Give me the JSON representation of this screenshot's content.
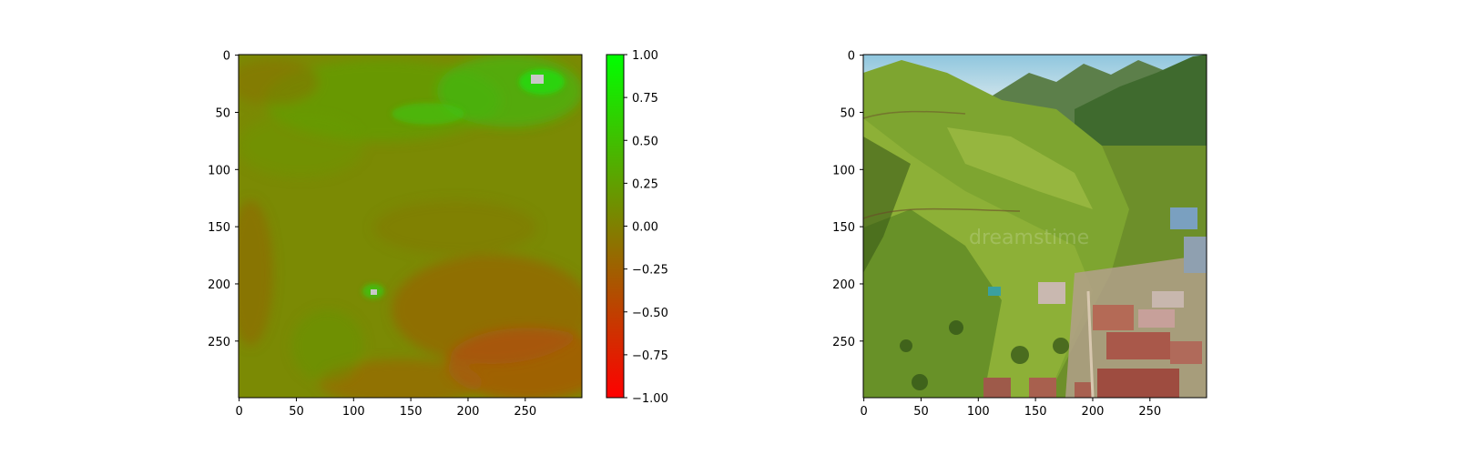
{
  "chart_data": [
    {
      "type": "heatmap",
      "title": "",
      "xlabel": "",
      "ylabel": "",
      "x_range": [
        0,
        300
      ],
      "y_range": [
        0,
        300
      ],
      "y_inverted": true,
      "x_ticks": [
        "0",
        "50",
        "100",
        "150",
        "200",
        "250"
      ],
      "y_ticks": [
        "0",
        "50",
        "100",
        "150",
        "200",
        "250"
      ],
      "grid": false,
      "colorbar": {
        "range": [
          -1.0,
          1.0
        ],
        "colors": [
          "#ff0000",
          "#808000",
          "#00ff00"
        ],
        "tick_labels": [
          "1.00",
          "0.75",
          "0.50",
          "0.25",
          "0.00",
          "−0.25",
          "−0.50",
          "−0.75",
          "−1.00"
        ]
      }
    },
    {
      "type": "image",
      "title": "",
      "xlabel": "",
      "ylabel": "",
      "x_range": [
        0,
        300
      ],
      "y_range": [
        0,
        300
      ],
      "y_inverted": true,
      "x_ticks": [
        "0",
        "50",
        "100",
        "150",
        "200",
        "250"
      ],
      "y_ticks": [
        "0",
        "50",
        "100",
        "150",
        "200",
        "250"
      ],
      "grid": false,
      "watermark": "dreamstime"
    }
  ]
}
